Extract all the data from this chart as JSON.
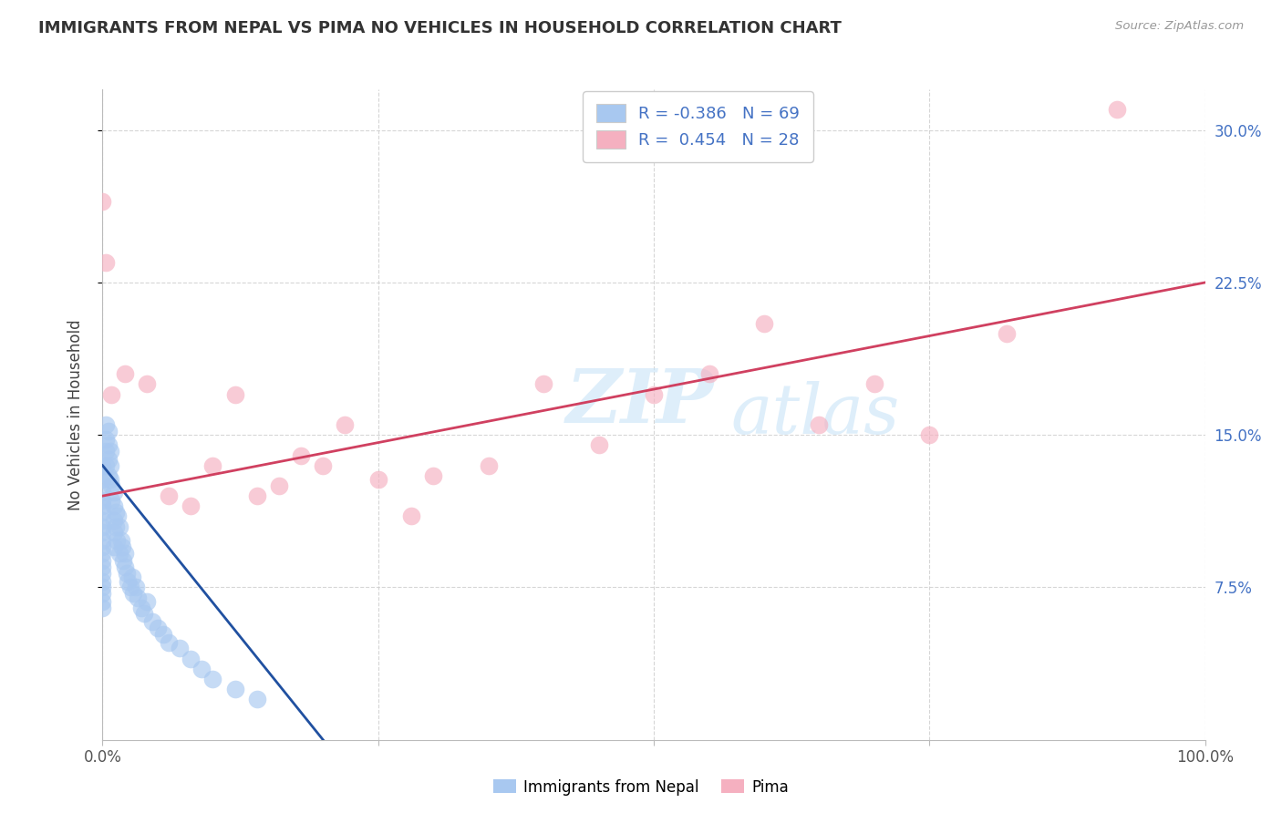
{
  "title": "IMMIGRANTS FROM NEPAL VS PIMA NO VEHICLES IN HOUSEHOLD CORRELATION CHART",
  "source": "Source: ZipAtlas.com",
  "ylabel": "No Vehicles in Household",
  "xlim": [
    0.0,
    100.0
  ],
  "ylim": [
    0.0,
    32.0
  ],
  "background_color": "#ffffff",
  "grid_color": "#cccccc",
  "watermark_line1": "ZIP",
  "watermark_line2": "atlas",
  "legend_text1": "R = -0.386   N = 69",
  "legend_text2": "R =  0.454   N = 28",
  "color_nepal": "#a8c8f0",
  "color_pima": "#f5b0c0",
  "color_line_nepal": "#2050a0",
  "color_line_pima": "#d04060",
  "right_tick_color": "#4472c4",
  "scatter_nepal_x": [
    0.0,
    0.0,
    0.0,
    0.0,
    0.0,
    0.0,
    0.0,
    0.0,
    0.0,
    0.0,
    0.0,
    0.0,
    0.0,
    0.0,
    0.0,
    0.0,
    0.0,
    0.0,
    0.0,
    0.0,
    0.3,
    0.3,
    0.3,
    0.3,
    0.5,
    0.5,
    0.5,
    0.5,
    0.7,
    0.7,
    0.7,
    0.8,
    0.8,
    1.0,
    1.0,
    1.0,
    1.0,
    1.0,
    1.2,
    1.2,
    1.3,
    1.4,
    1.5,
    1.5,
    1.7,
    1.8,
    1.9,
    2.0,
    2.0,
    2.2,
    2.3,
    2.5,
    2.7,
    2.8,
    3.0,
    3.2,
    3.5,
    3.8,
    4.0,
    4.5,
    5.0,
    5.5,
    6.0,
    7.0,
    8.0,
    9.0,
    10.0,
    12.0,
    14.0
  ],
  "scatter_nepal_y": [
    13.5,
    12.8,
    12.2,
    11.8,
    11.5,
    11.2,
    10.8,
    10.5,
    10.2,
    9.8,
    9.5,
    9.2,
    8.8,
    8.5,
    8.2,
    7.8,
    7.5,
    7.2,
    6.8,
    6.5,
    15.5,
    14.8,
    14.2,
    13.5,
    15.2,
    14.5,
    13.8,
    13.0,
    14.2,
    13.5,
    12.8,
    12.5,
    11.8,
    12.2,
    11.5,
    10.8,
    10.2,
    9.5,
    11.2,
    10.5,
    9.8,
    11.0,
    10.5,
    9.2,
    9.8,
    9.5,
    8.8,
    9.2,
    8.5,
    8.2,
    7.8,
    7.5,
    8.0,
    7.2,
    7.5,
    7.0,
    6.5,
    6.2,
    6.8,
    5.8,
    5.5,
    5.2,
    4.8,
    4.5,
    4.0,
    3.5,
    3.0,
    2.5,
    2.0
  ],
  "scatter_pima_x": [
    0.0,
    0.3,
    0.8,
    2.0,
    4.0,
    6.0,
    8.0,
    10.0,
    12.0,
    14.0,
    16.0,
    18.0,
    20.0,
    22.0,
    25.0,
    28.0,
    30.0,
    35.0,
    40.0,
    45.0,
    50.0,
    55.0,
    60.0,
    65.0,
    70.0,
    75.0,
    82.0,
    92.0
  ],
  "scatter_pima_y": [
    26.5,
    23.5,
    17.0,
    18.0,
    17.5,
    12.0,
    11.5,
    13.5,
    17.0,
    12.0,
    12.5,
    14.0,
    13.5,
    15.5,
    12.8,
    11.0,
    13.0,
    13.5,
    17.5,
    14.5,
    17.0,
    18.0,
    20.5,
    15.5,
    17.5,
    15.0,
    20.0,
    31.0
  ],
  "pima_line_x0": 0,
  "pima_line_x1": 100,
  "pima_line_y0": 12.0,
  "pima_line_y1": 22.5,
  "nepal_line_x0": 0,
  "nepal_line_x1": 20,
  "nepal_line_y0": 13.5,
  "nepal_line_y1": 0.0
}
